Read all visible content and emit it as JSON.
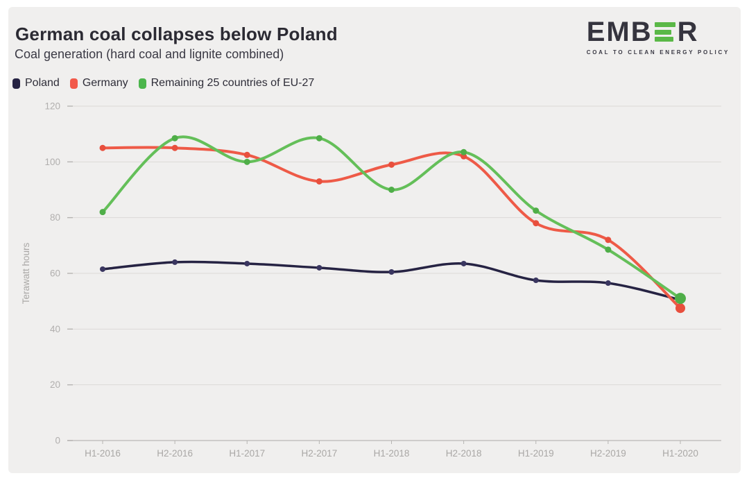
{
  "logo": {
    "prefix": "EMB",
    "suffix": "R",
    "tagline": "COAL TO CLEAN ENERGY POLICY",
    "bar_color": "#5ab847"
  },
  "colors": {
    "card_background": "#f0efee",
    "grid_color": "#dbd9d7",
    "axis_color": "#c3c1bf",
    "tick_color": "#b6b4b2",
    "y_label_color": "#b1afae",
    "x_label_color": "#a9a7a5"
  },
  "chart_data": {
    "type": "line",
    "title": "German coal collapses below Poland",
    "subtitle": "Coal generation (hard coal and lignite combined)",
    "ylabel": "Terawatt hours",
    "ylim": [
      0,
      120
    ],
    "yticks": [
      0,
      20,
      40,
      60,
      80,
      100,
      120
    ],
    "grid": true,
    "legend_position": "top-left",
    "categories": [
      "H1-2016",
      "H2-2016",
      "H1-2017",
      "H2-2017",
      "H1-2018",
      "H2-2018",
      "H1-2019",
      "H2-2019",
      "H1-2020"
    ],
    "series": [
      {
        "name": "Poland",
        "color": "#262343",
        "legend_color": "#262343",
        "marker_color": "#3a3660",
        "line_width": 3.5,
        "marker_radius": 4,
        "end_marker_radius": 5.5,
        "values": [
          61.5,
          64,
          63.5,
          62,
          60.5,
          63.5,
          57.5,
          56.5,
          50.5
        ]
      },
      {
        "name": "Germany",
        "color": "#ee5a47",
        "legend_color": "#f2594a",
        "marker_color": "#e84f3d",
        "line_width": 4,
        "marker_radius": 4.5,
        "end_marker_radius": 7,
        "values": [
          105,
          105,
          102.5,
          93,
          99,
          102,
          78,
          72,
          47.5
        ]
      },
      {
        "name": "Remaining 25 countries of EU-27",
        "color": "#64bf59",
        "legend_color": "#4cb64c",
        "marker_color": "#4fae48",
        "line_width": 4,
        "marker_radius": 4.5,
        "end_marker_radius": 8,
        "values": [
          82,
          108.5,
          100,
          108.5,
          90,
          103.5,
          82.5,
          68.5,
          51
        ]
      }
    ]
  }
}
